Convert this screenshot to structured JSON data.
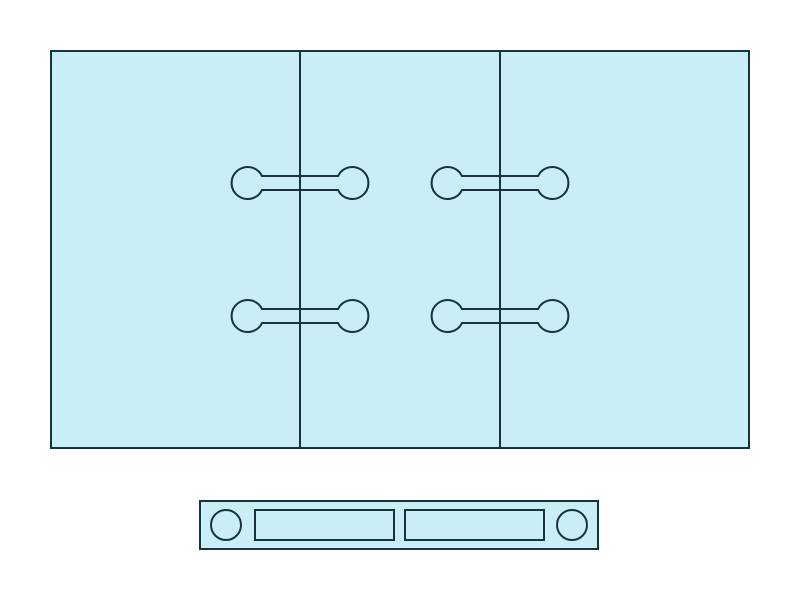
{
  "colors": {
    "fill": "#c9eef5",
    "stroke": "#17343d",
    "background": "#ffffff"
  },
  "diagram": {
    "description_free": true,
    "glass_panels": 3,
    "connectors": 4,
    "connector_rows": 2,
    "connector_columns": 2,
    "fitting_holes": 2,
    "fitting_slots": 2
  }
}
